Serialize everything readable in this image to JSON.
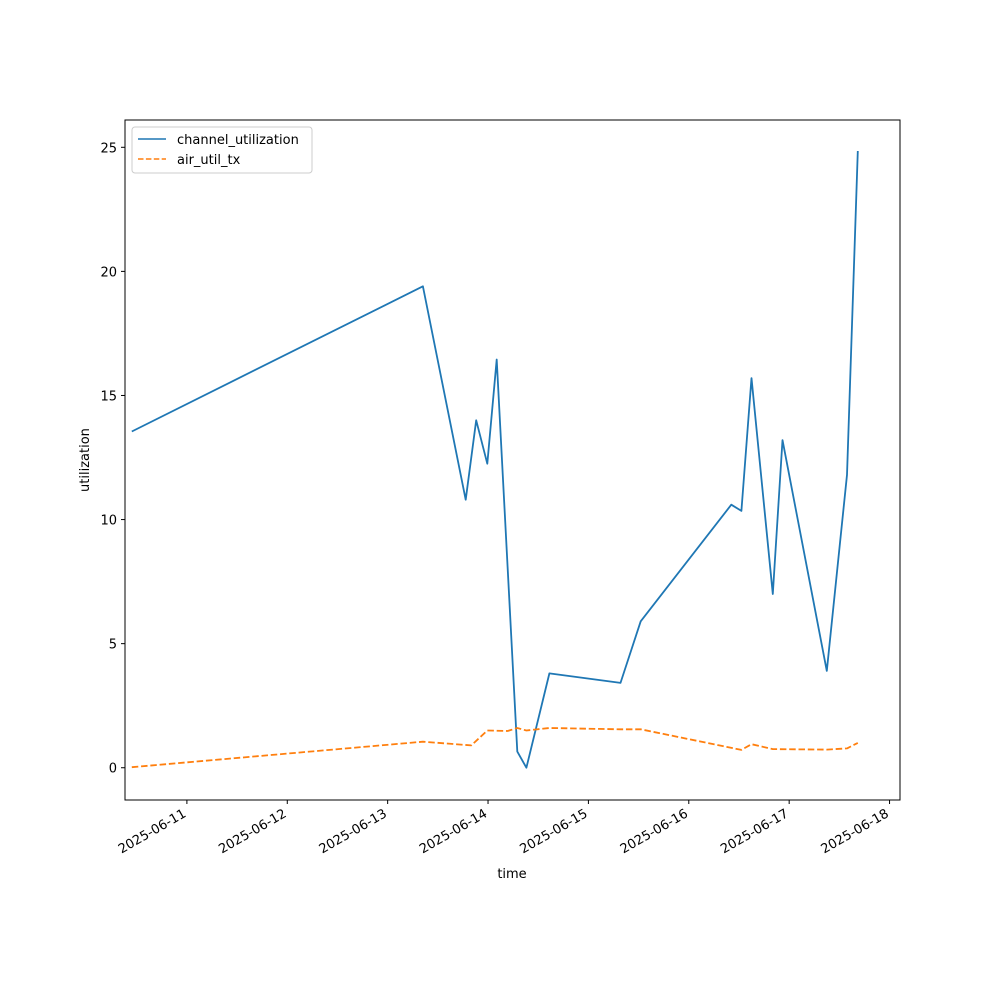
{
  "chart_data": {
    "type": "line",
    "title": "",
    "xlabel": "time",
    "ylabel": "utilization",
    "x_axis": {
      "type": "date",
      "range": [
        "2025-06-10 09:12",
        "2025-06-18 02:30"
      ],
      "tick_labels": [
        "2025-06-11",
        "2025-06-12",
        "2025-06-13",
        "2025-06-14",
        "2025-06-15",
        "2025-06-16",
        "2025-06-17",
        "2025-06-18"
      ]
    },
    "y_axis": {
      "range": [
        -1.3,
        26.1
      ],
      "ticks": [
        0,
        5,
        10,
        15,
        20,
        25
      ]
    },
    "grid": false,
    "legend": {
      "placement": "upper-left"
    },
    "series": [
      {
        "name": "channel_utilization",
        "color": "#1f77b4",
        "style": "solid",
        "points": [
          [
            "2025-06-10 10:50",
            13.55
          ],
          [
            "2025-06-13 08:25",
            19.4
          ],
          [
            "2025-06-13 18:40",
            10.8
          ],
          [
            "2025-06-13 21:10",
            14.0
          ],
          [
            "2025-06-13 23:50",
            12.25
          ],
          [
            "2025-06-14 02:05",
            16.45
          ],
          [
            "2025-06-14 07:00",
            0.65
          ],
          [
            "2025-06-14 09:10",
            0.0
          ],
          [
            "2025-06-14 14:40",
            3.8
          ],
          [
            "2025-06-15 07:40",
            3.42
          ],
          [
            "2025-06-15 12:30",
            5.9
          ],
          [
            "2025-06-16 10:10",
            10.6
          ],
          [
            "2025-06-16 12:35",
            10.35
          ],
          [
            "2025-06-16 15:00",
            15.7
          ],
          [
            "2025-06-16 20:05",
            7.0
          ],
          [
            "2025-06-16 22:25",
            13.2
          ],
          [
            "2025-06-17 09:00",
            3.9
          ],
          [
            "2025-06-17 13:50",
            11.8
          ],
          [
            "2025-06-17 16:25",
            24.85
          ]
        ]
      },
      {
        "name": "air_util_tx",
        "color": "#ff7f0e",
        "style": "dashed",
        "points": [
          [
            "2025-06-10 10:50",
            0.02
          ],
          [
            "2025-06-13 08:25",
            1.05
          ],
          [
            "2025-06-13 20:00",
            0.9
          ],
          [
            "2025-06-13 23:50",
            1.5
          ],
          [
            "2025-06-14 04:40",
            1.48
          ],
          [
            "2025-06-14 07:00",
            1.6
          ],
          [
            "2025-06-14 09:10",
            1.5
          ],
          [
            "2025-06-14 14:40",
            1.6
          ],
          [
            "2025-06-15 07:40",
            1.55
          ],
          [
            "2025-06-15 12:30",
            1.55
          ],
          [
            "2025-06-16 12:35",
            0.72
          ],
          [
            "2025-06-16 15:00",
            0.95
          ],
          [
            "2025-06-16 20:05",
            0.75
          ],
          [
            "2025-06-17 09:00",
            0.73
          ],
          [
            "2025-06-17 13:50",
            0.78
          ],
          [
            "2025-06-17 16:25",
            1.0
          ]
        ]
      }
    ]
  }
}
